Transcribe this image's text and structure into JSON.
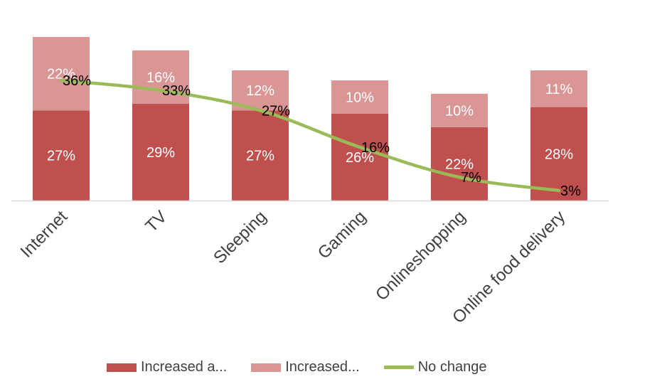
{
  "chart_data": {
    "type": "bar",
    "stacked": true,
    "categories": [
      "Internet",
      "TV",
      "Sleeping",
      "Gaming",
      "Onlineshopping",
      "Online food delivery"
    ],
    "series": [
      {
        "name": "Increased a...",
        "type": "bar",
        "values": [
          27,
          29,
          27,
          26,
          22,
          28
        ],
        "labels": [
          "27%",
          "29%",
          "27%",
          "26%",
          "22%",
          "28%"
        ]
      },
      {
        "name": "Increased...",
        "type": "bar",
        "values": [
          22,
          16,
          12,
          10,
          10,
          11
        ],
        "labels": [
          "22%",
          "16%",
          "12%",
          "10%",
          "10%",
          "11%"
        ]
      },
      {
        "name": "No change",
        "type": "line",
        "values": [
          36,
          33,
          27,
          16,
          7,
          3
        ],
        "labels": [
          "36%",
          "33%",
          "27%",
          "16%",
          "7%",
          "3%"
        ]
      }
    ],
    "ylim": [
      0,
      50
    ],
    "grid": false,
    "legend": "bottom",
    "colors": {
      "bar_dark": "#c0504d",
      "bar_light": "#d99694",
      "line": "#9bbb59",
      "axis": "#d9d9d9",
      "text": "#404040"
    }
  }
}
